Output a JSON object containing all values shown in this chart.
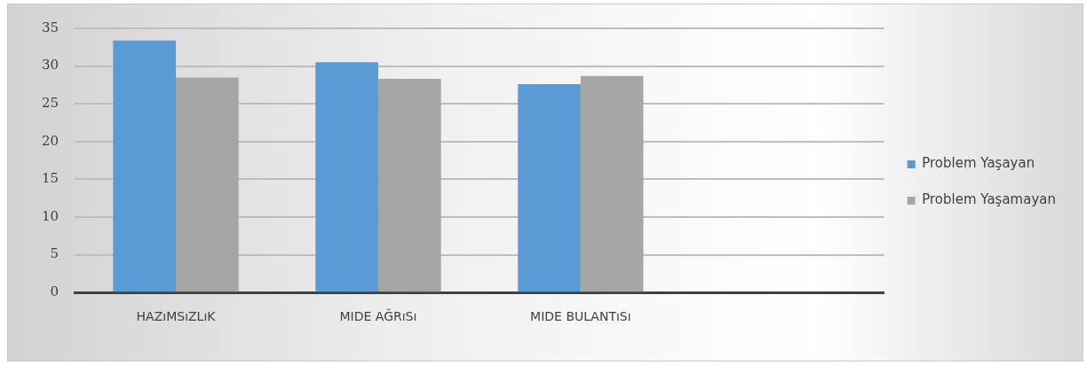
{
  "chart_data": {
    "type": "bar",
    "categories": [
      "HAZıMSıZLıK",
      "MIDE AĞRıSı",
      "MIDE BULANTıSı",
      null
    ],
    "series": [
      {
        "name": "Problem Yaşayan",
        "color": "#5b9bd5",
        "values": [
          33.4,
          30.5,
          27.6,
          null
        ]
      },
      {
        "name": "Problem Yaşamayan",
        "color": "#a5a5a5",
        "values": [
          28.5,
          28.3,
          28.7,
          null
        ]
      }
    ],
    "ylim": [
      0,
      35
    ],
    "yticks": [
      0,
      5,
      10,
      15,
      20,
      25,
      30,
      35
    ],
    "grid": "y",
    "legend": "right"
  }
}
